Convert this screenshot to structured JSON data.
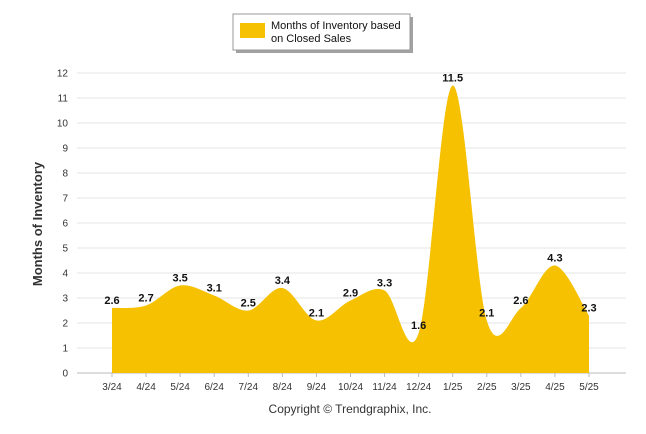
{
  "chart_data": {
    "type": "area",
    "categories": [
      "3/24",
      "4/24",
      "5/24",
      "6/24",
      "7/24",
      "8/24",
      "9/24",
      "10/24",
      "11/24",
      "12/24",
      "1/25",
      "2/25",
      "3/25",
      "4/25",
      "5/25"
    ],
    "series": [
      {
        "name": "Months of Inventory based on Closed Sales",
        "name_lines": [
          "Months of Inventory based",
          "on Closed Sales"
        ],
        "values": [
          2.6,
          2.7,
          3.5,
          3.1,
          2.5,
          3.4,
          2.1,
          2.9,
          3.3,
          1.6,
          11.5,
          2.1,
          2.6,
          4.3,
          2.3
        ],
        "color": "#f5c100"
      }
    ],
    "ylabel": "Months of Inventory",
    "xlabel": "",
    "ylim": [
      0,
      12
    ],
    "yticks": [
      0,
      1,
      2,
      3,
      4,
      5,
      6,
      7,
      8,
      9,
      10,
      11,
      12
    ],
    "grid": true,
    "legend": "top-center"
  },
  "footer": {
    "copyright": "Copyright © Trendgraphix, Inc."
  }
}
